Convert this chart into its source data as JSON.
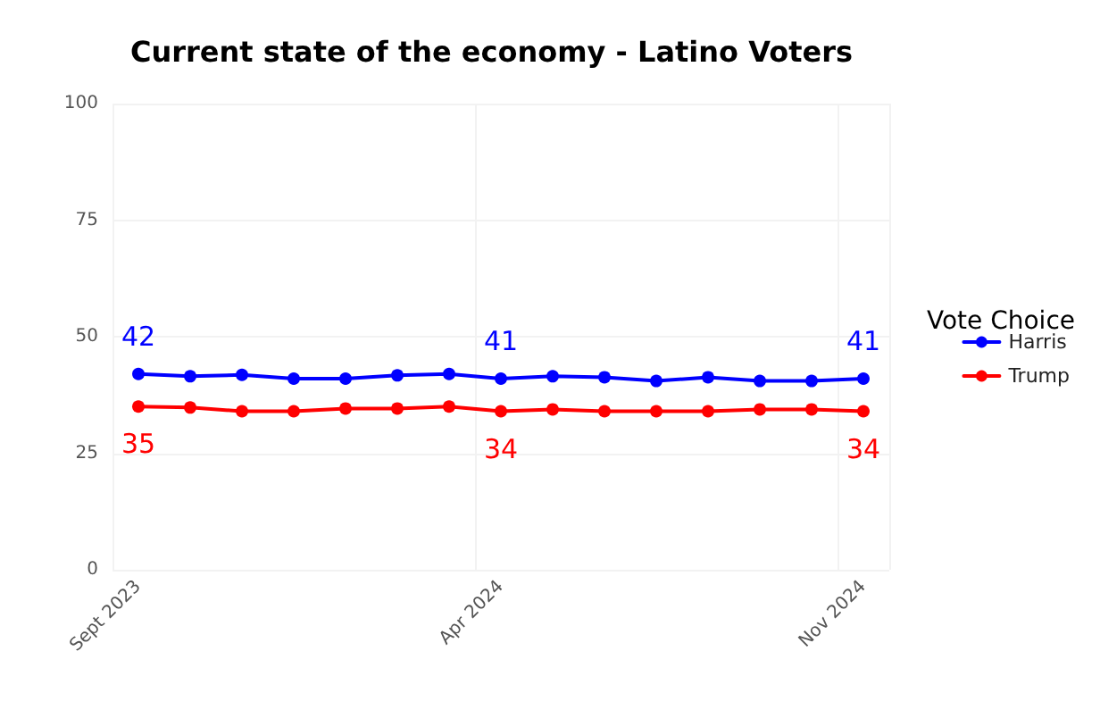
{
  "chart_data": {
    "type": "line",
    "title": "Current state of the economy - Latino Voters",
    "legend_title": "Vote Choice",
    "categories": [
      "Sept 2023",
      null,
      null,
      null,
      null,
      null,
      null,
      "Apr 2024",
      null,
      null,
      null,
      null,
      null,
      null,
      "Nov 2024"
    ],
    "series": [
      {
        "name": "Harris",
        "color": "#0000ff",
        "values": [
          42,
          41.5,
          41.8,
          41,
          41,
          41.7,
          42,
          41,
          41.5,
          41.3,
          40.5,
          41.3,
          40.5,
          40.5,
          41
        ],
        "value_labels": [
          "42",
          null,
          null,
          null,
          null,
          null,
          null,
          "41",
          null,
          null,
          null,
          null,
          null,
          null,
          "41"
        ]
      },
      {
        "name": "Trump",
        "color": "#ff0000",
        "values": [
          35,
          34.8,
          34,
          34,
          34.6,
          34.6,
          35,
          34,
          34.4,
          34,
          34,
          34,
          34.4,
          34.4,
          34
        ],
        "value_labels": [
          "35",
          null,
          null,
          null,
          null,
          null,
          null,
          "34",
          null,
          null,
          null,
          null,
          null,
          null,
          "34"
        ]
      }
    ],
    "ylim": [
      0,
      100
    ],
    "yticks": [
      0,
      25,
      50,
      75,
      100
    ],
    "grid": true,
    "legend": "right",
    "marker": "circle",
    "line_style": "solid"
  }
}
